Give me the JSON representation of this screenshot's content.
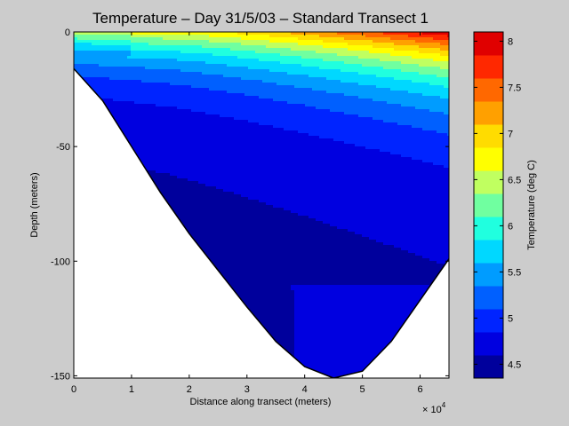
{
  "chart_data": {
    "type": "contour",
    "title": "Temperature – Day 31/5/03 – Standard Transect 1",
    "xlabel": "Distance along transect (meters)",
    "ylabel": "Depth (meters)",
    "x_multiplier": "× 10",
    "x_multiplier_exp": "4",
    "xlim": [
      0,
      65000
    ],
    "ylim": [
      -151,
      0
    ],
    "x_ticks": [
      0,
      10000,
      20000,
      30000,
      40000,
      50000,
      60000
    ],
    "x_tick_labels": [
      "0",
      "1",
      "2",
      "3",
      "4",
      "5",
      "6"
    ],
    "y_ticks": [
      0,
      -50,
      -100,
      -150
    ],
    "y_tick_labels": [
      "0",
      "-50",
      "-100",
      "-150"
    ],
    "colorbar": {
      "label": "Temperature (deg C)",
      "range": [
        4.35,
        8.1
      ],
      "ticks": [
        4.5,
        5,
        5.5,
        6,
        6.5,
        7,
        7.5,
        8
      ],
      "tick_labels": [
        "4.5",
        "5",
        "5.5",
        "6",
        "6.5",
        "7",
        "7.5",
        "8"
      ],
      "levels": [
        4.35,
        4.6,
        4.85,
        5.1,
        5.35,
        5.6,
        5.85,
        6.1,
        6.35,
        6.6,
        6.85,
        7.1,
        7.35,
        7.6,
        7.85,
        8.1
      ],
      "colors": [
        "#00009c",
        "#0000e0",
        "#0024ff",
        "#0060ff",
        "#009cff",
        "#00d8ff",
        "#20ffdf",
        "#70ffa0",
        "#c0ff60",
        "#ffff00",
        "#ffdc00",
        "#ffa000",
        "#ff6800",
        "#ff2800",
        "#e00000",
        "#b00000"
      ]
    },
    "bathymetry": {
      "x": [
        0,
        5000,
        10000,
        15000,
        20000,
        25000,
        30000,
        35000,
        40000,
        45000,
        50000,
        55000,
        60000,
        65000
      ],
      "depth": [
        -16,
        -30,
        -50,
        -70,
        -88,
        -104,
        -120,
        -135,
        -146,
        -151,
        -148,
        -135,
        -117,
        -99
      ]
    }
  }
}
